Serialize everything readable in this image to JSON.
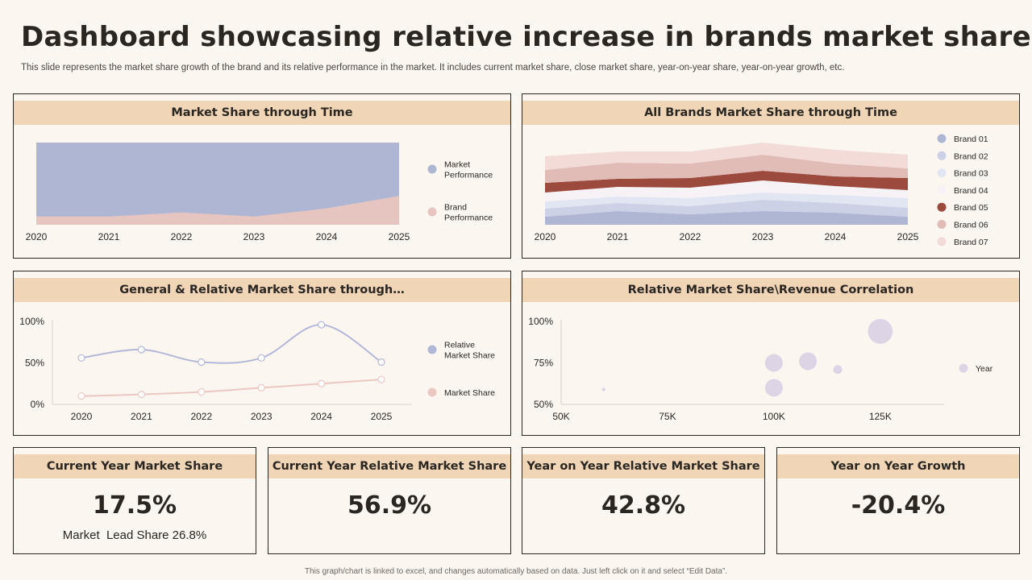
{
  "header": {
    "title": "Dashboard showcasing relative increase in brands market share",
    "subtitle": "This slide represents the market share growth of the brand and its relative performance in the market. It includes current market share, close market share, year-on-year share, year-on-year growth, etc."
  },
  "footer": {
    "note": "This graph/chart is linked to excel, and changes automatically based on data. Just left click on it and select “Edit Data”."
  },
  "colors": {
    "header_band": "#f0d5b6",
    "market_performance": "#aeb6d4",
    "brand_performance": "#e6c5c0",
    "bubble": "#ddd5e6"
  },
  "kpis": [
    {
      "title": "Current Year Market Share",
      "value": "17.5%",
      "sub": "Market  Lead Share 26.8%"
    },
    {
      "title": "Current Year Relative Market Share",
      "value": "56.9%"
    },
    {
      "title": "Year on Year Relative Market Share",
      "value": "42.8%"
    },
    {
      "title": "Year on Year Growth",
      "value": "-20.4%"
    }
  ],
  "chart_data": [
    {
      "type": "area",
      "title": "Market Share through Time",
      "x": [
        "2020",
        "2021",
        "2022",
        "2023",
        "2024",
        "2025"
      ],
      "ylim": [
        0,
        100
      ],
      "series": [
        {
          "name": "Market\nPerformance",
          "values": [
            100,
            100,
            100,
            100,
            100,
            100
          ],
          "color": "#aeb6d4"
        },
        {
          "name": "Brand\nPerformance",
          "values": [
            10,
            10,
            15,
            10,
            20,
            35
          ],
          "color": "#e6c5c0"
        }
      ],
      "legend": "right"
    },
    {
      "type": "area",
      "title": "All Brands Market Share through Time",
      "x": [
        "2020",
        "2021",
        "2022",
        "2023",
        "2024",
        "2025"
      ],
      "stacked": true,
      "series": [
        {
          "name": "Brand 01",
          "values": [
            10,
            17,
            13,
            17,
            15,
            10
          ],
          "color": "#aeb6d4"
        },
        {
          "name": "Brand 02",
          "values": [
            10,
            10,
            10,
            14,
            12,
            11
          ],
          "color": "#ccd1e6"
        },
        {
          "name": "Brand 03",
          "values": [
            9,
            8,
            10,
            9,
            10,
            12
          ],
          "color": "#e2e5f2"
        },
        {
          "name": "Brand 04",
          "values": [
            11,
            12,
            13,
            15,
            11,
            10
          ],
          "color": "#f6f2f5"
        },
        {
          "name": "Brand 05",
          "values": [
            12,
            10,
            12,
            12,
            12,
            15
          ],
          "color": "#9c4a3e"
        },
        {
          "name": "Brand 06",
          "values": [
            16,
            20,
            18,
            20,
            16,
            12
          ],
          "color": "#e1bcb6"
        },
        {
          "name": "Brand 07",
          "values": [
            17,
            14,
            15,
            15,
            17,
            17
          ],
          "color": "#f3dcd7"
        }
      ],
      "legend": "right"
    },
    {
      "type": "line",
      "title": "General & Relative Market Share through…",
      "x": [
        "2020",
        "2021",
        "2022",
        "2023",
        "2024",
        "2025"
      ],
      "yticks": [
        "0%",
        "50%",
        "100%"
      ],
      "ylim": [
        0,
        100
      ],
      "series": [
        {
          "name": "Relative\nMarket Share",
          "values": [
            56,
            66,
            51,
            56,
            96,
            51
          ],
          "color": "#b4b8d8"
        },
        {
          "name": "Market Share",
          "values": [
            10,
            12,
            15,
            20,
            25,
            30
          ],
          "color": "#ecc8c2"
        }
      ],
      "legend": "right"
    },
    {
      "type": "scatter",
      "title": "Relative Market Share\\Revenue Correlation",
      "xticks": [
        "50K",
        "75K",
        "100K",
        "125K"
      ],
      "yticks": [
        "50%",
        "75%",
        "100%"
      ],
      "xlim": [
        50000,
        140000
      ],
      "ylim": [
        50,
        100
      ],
      "series": [
        {
          "name": "Year",
          "color": "#ddd5e6",
          "points": [
            {
              "x": 60000,
              "y": 59,
              "size": 1
            },
            {
              "x": 100000,
              "y": 60,
              "size": 5
            },
            {
              "x": 100000,
              "y": 75,
              "size": 5
            },
            {
              "x": 108000,
              "y": 76,
              "size": 5
            },
            {
              "x": 115000,
              "y": 71,
              "size": 2.5
            },
            {
              "x": 125000,
              "y": 94,
              "size": 7
            }
          ]
        }
      ],
      "legend": "right"
    }
  ]
}
